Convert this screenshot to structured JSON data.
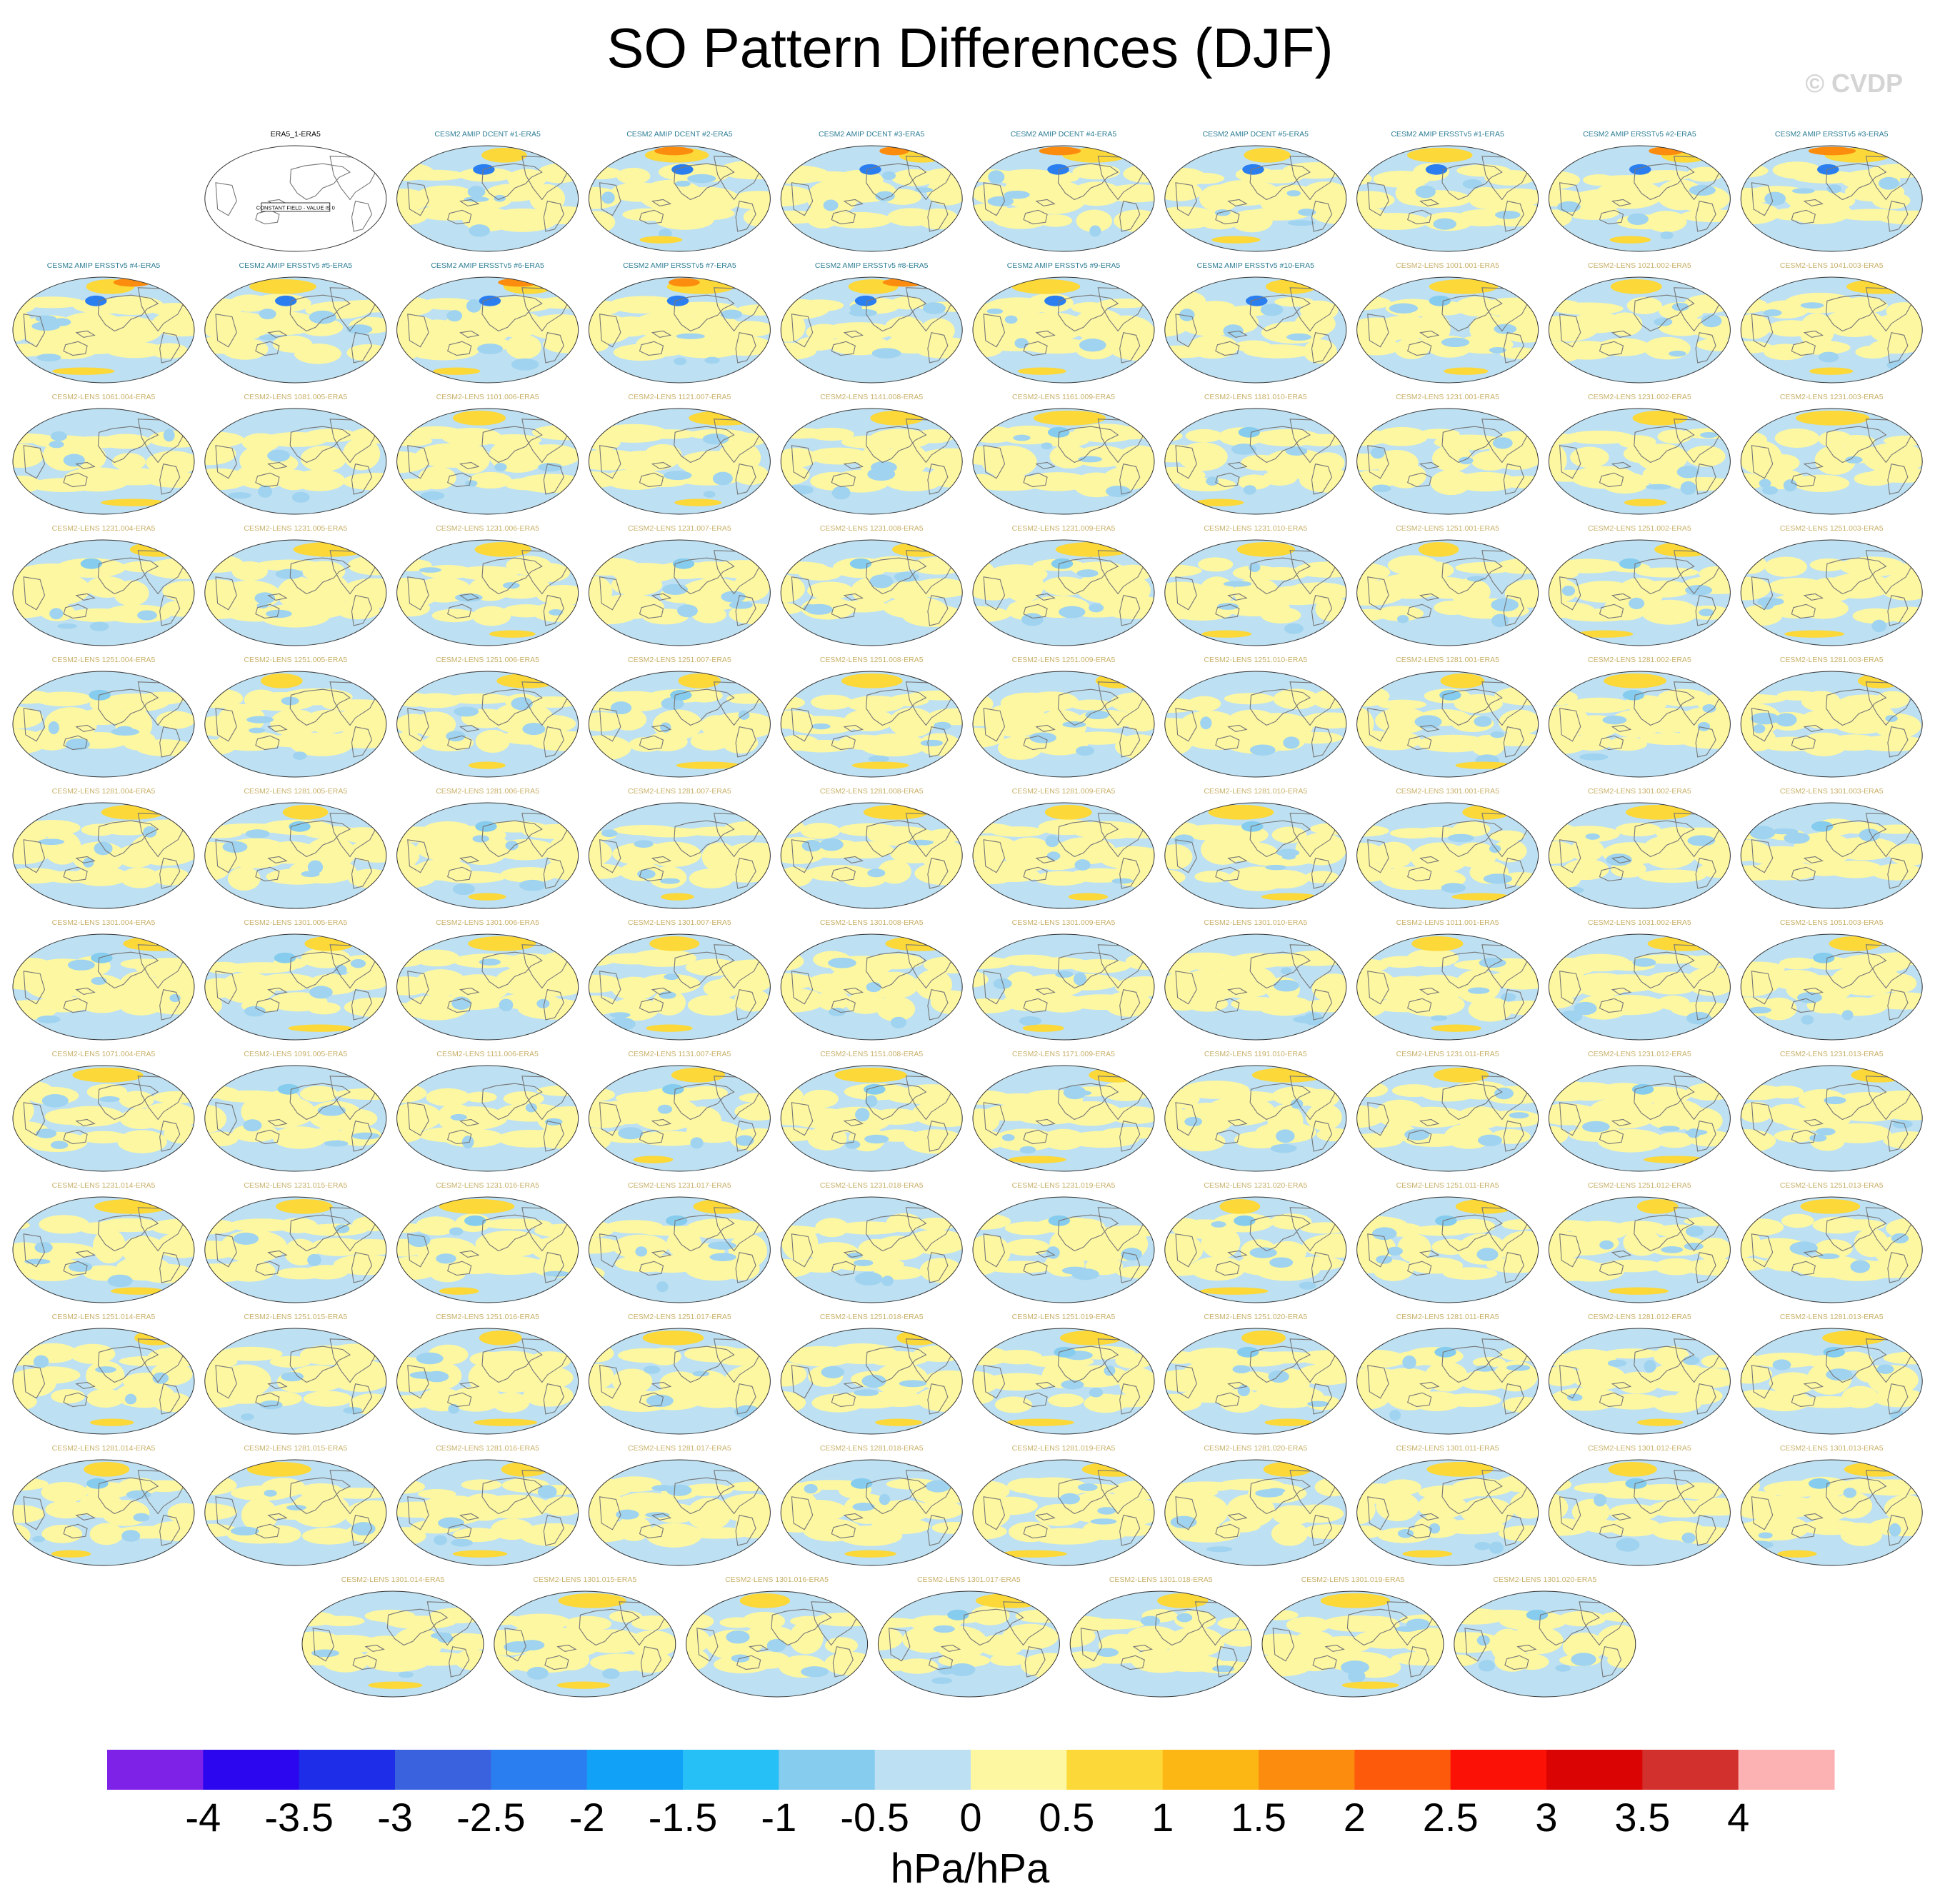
{
  "figure": {
    "title": "SO Pattern Differences (DJF)",
    "credit": "© CVDP"
  },
  "chart_data": {
    "type": "heatmap",
    "title": "SO Pattern Differences (DJF)",
    "projection": "global map",
    "panel_layout": {
      "rows": [
        9,
        10,
        10,
        10,
        10,
        10,
        10,
        10,
        10,
        10,
        10,
        7
      ]
    },
    "panels": [
      {
        "label": "ERA5_1-ERA5",
        "kind": "constant",
        "note": "CONSTANT FIELD - VALUE IS 0"
      },
      {
        "label": "CESM2 AMIP DCENT #1-ERA5",
        "kind": "amip"
      },
      {
        "label": "CESM2 AMIP DCENT #2-ERA5",
        "kind": "amip"
      },
      {
        "label": "CESM2 AMIP DCENT #3-ERA5",
        "kind": "amip"
      },
      {
        "label": "CESM2 AMIP DCENT #4-ERA5",
        "kind": "amip"
      },
      {
        "label": "CESM2 AMIP DCENT #5-ERA5",
        "kind": "amip"
      },
      {
        "label": "CESM2 AMIP ERSSTv5 #1-ERA5",
        "kind": "amip"
      },
      {
        "label": "CESM2 AMIP ERSSTv5 #2-ERA5",
        "kind": "amip"
      },
      {
        "label": "CESM2 AMIP ERSSTv5 #3-ERA5",
        "kind": "amip"
      },
      {
        "label": "CESM2 AMIP ERSSTv5 #4-ERA5",
        "kind": "amip"
      },
      {
        "label": "CESM2 AMIP ERSSTv5 #5-ERA5",
        "kind": "amip"
      },
      {
        "label": "CESM2 AMIP ERSSTv5 #6-ERA5",
        "kind": "amip"
      },
      {
        "label": "CESM2 AMIP ERSSTv5 #7-ERA5",
        "kind": "amip"
      },
      {
        "label": "CESM2 AMIP ERSSTv5 #8-ERA5",
        "kind": "amip"
      },
      {
        "label": "CESM2 AMIP ERSSTv5 #9-ERA5",
        "kind": "amip"
      },
      {
        "label": "CESM2 AMIP ERSSTv5 #10-ERA5",
        "kind": "amip"
      },
      {
        "label": "CESM2-LENS 1001.001-ERA5",
        "kind": "lens"
      },
      {
        "label": "CESM2-LENS 1021.002-ERA5",
        "kind": "lens"
      },
      {
        "label": "CESM2-LENS 1041.003-ERA5",
        "kind": "lens"
      },
      {
        "label": "CESM2-LENS 1061.004-ERA5",
        "kind": "lens"
      },
      {
        "label": "CESM2-LENS 1081.005-ERA5",
        "kind": "lens"
      },
      {
        "label": "CESM2-LENS 1101.006-ERA5",
        "kind": "lens"
      },
      {
        "label": "CESM2-LENS 1121.007-ERA5",
        "kind": "lens"
      },
      {
        "label": "CESM2-LENS 1141.008-ERA5",
        "kind": "lens"
      },
      {
        "label": "CESM2-LENS 1161.009-ERA5",
        "kind": "lens"
      },
      {
        "label": "CESM2-LENS 1181.010-ERA5",
        "kind": "lens"
      },
      {
        "label": "CESM2-LENS 1231.001-ERA5",
        "kind": "lens"
      },
      {
        "label": "CESM2-LENS 1231.002-ERA5",
        "kind": "lens"
      },
      {
        "label": "CESM2-LENS 1231.003-ERA5",
        "kind": "lens"
      },
      {
        "label": "CESM2-LENS 1231.004-ERA5",
        "kind": "lens"
      },
      {
        "label": "CESM2-LENS 1231.005-ERA5",
        "kind": "lens"
      },
      {
        "label": "CESM2-LENS 1231.006-ERA5",
        "kind": "lens"
      },
      {
        "label": "CESM2-LENS 1231.007-ERA5",
        "kind": "lens"
      },
      {
        "label": "CESM2-LENS 1231.008-ERA5",
        "kind": "lens"
      },
      {
        "label": "CESM2-LENS 1231.009-ERA5",
        "kind": "lens"
      },
      {
        "label": "CESM2-LENS 1231.010-ERA5",
        "kind": "lens"
      },
      {
        "label": "CESM2-LENS 1251.001-ERA5",
        "kind": "lens"
      },
      {
        "label": "CESM2-LENS 1251.002-ERA5",
        "kind": "lens"
      },
      {
        "label": "CESM2-LENS 1251.003-ERA5",
        "kind": "lens"
      },
      {
        "label": "CESM2-LENS 1251.004-ERA5",
        "kind": "lens"
      },
      {
        "label": "CESM2-LENS 1251.005-ERA5",
        "kind": "lens"
      },
      {
        "label": "CESM2-LENS 1251.006-ERA5",
        "kind": "lens"
      },
      {
        "label": "CESM2-LENS 1251.007-ERA5",
        "kind": "lens"
      },
      {
        "label": "CESM2-LENS 1251.008-ERA5",
        "kind": "lens"
      },
      {
        "label": "CESM2-LENS 1251.009-ERA5",
        "kind": "lens"
      },
      {
        "label": "CESM2-LENS 1251.010-ERA5",
        "kind": "lens"
      },
      {
        "label": "CESM2-LENS 1281.001-ERA5",
        "kind": "lens"
      },
      {
        "label": "CESM2-LENS 1281.002-ERA5",
        "kind": "lens"
      },
      {
        "label": "CESM2-LENS 1281.003-ERA5",
        "kind": "lens"
      },
      {
        "label": "CESM2-LENS 1281.004-ERA5",
        "kind": "lens"
      },
      {
        "label": "CESM2-LENS 1281.005-ERA5",
        "kind": "lens"
      },
      {
        "label": "CESM2-LENS 1281.006-ERA5",
        "kind": "lens"
      },
      {
        "label": "CESM2-LENS 1281.007-ERA5",
        "kind": "lens"
      },
      {
        "label": "CESM2-LENS 1281.008-ERA5",
        "kind": "lens"
      },
      {
        "label": "CESM2-LENS 1281.009-ERA5",
        "kind": "lens"
      },
      {
        "label": "CESM2-LENS 1281.010-ERA5",
        "kind": "lens"
      },
      {
        "label": "CESM2-LENS 1301.001-ERA5",
        "kind": "lens"
      },
      {
        "label": "CESM2-LENS 1301.002-ERA5",
        "kind": "lens"
      },
      {
        "label": "CESM2-LENS 1301.003-ERA5",
        "kind": "lens"
      },
      {
        "label": "CESM2-LENS 1301.004-ERA5",
        "kind": "lens"
      },
      {
        "label": "CESM2-LENS 1301.005-ERA5",
        "kind": "lens"
      },
      {
        "label": "CESM2-LENS 1301.006-ERA5",
        "kind": "lens"
      },
      {
        "label": "CESM2-LENS 1301.007-ERA5",
        "kind": "lens"
      },
      {
        "label": "CESM2-LENS 1301.008-ERA5",
        "kind": "lens"
      },
      {
        "label": "CESM2-LENS 1301.009-ERA5",
        "kind": "lens"
      },
      {
        "label": "CESM2-LENS 1301.010-ERA5",
        "kind": "lens"
      },
      {
        "label": "CESM2-LENS 1011.001-ERA5",
        "kind": "lens"
      },
      {
        "label": "CESM2-LENS 1031.002-ERA5",
        "kind": "lens"
      },
      {
        "label": "CESM2-LENS 1051.003-ERA5",
        "kind": "lens"
      },
      {
        "label": "CESM2-LENS 1071.004-ERA5",
        "kind": "lens"
      },
      {
        "label": "CESM2-LENS 1091.005-ERA5",
        "kind": "lens"
      },
      {
        "label": "CESM2-LENS 1111.006-ERA5",
        "kind": "lens"
      },
      {
        "label": "CESM2-LENS 1131.007-ERA5",
        "kind": "lens"
      },
      {
        "label": "CESM2-LENS 1151.008-ERA5",
        "kind": "lens"
      },
      {
        "label": "CESM2-LENS 1171.009-ERA5",
        "kind": "lens"
      },
      {
        "label": "CESM2-LENS 1191.010-ERA5",
        "kind": "lens"
      },
      {
        "label": "CESM2-LENS 1231.011-ERA5",
        "kind": "lens"
      },
      {
        "label": "CESM2-LENS 1231.012-ERA5",
        "kind": "lens"
      },
      {
        "label": "CESM2-LENS 1231.013-ERA5",
        "kind": "lens"
      },
      {
        "label": "CESM2-LENS 1231.014-ERA5",
        "kind": "lens"
      },
      {
        "label": "CESM2-LENS 1231.015-ERA5",
        "kind": "lens"
      },
      {
        "label": "CESM2-LENS 1231.016-ERA5",
        "kind": "lens"
      },
      {
        "label": "CESM2-LENS 1231.017-ERA5",
        "kind": "lens"
      },
      {
        "label": "CESM2-LENS 1231.018-ERA5",
        "kind": "lens"
      },
      {
        "label": "CESM2-LENS 1231.019-ERA5",
        "kind": "lens"
      },
      {
        "label": "CESM2-LENS 1231.020-ERA5",
        "kind": "lens"
      },
      {
        "label": "CESM2-LENS 1251.011-ERA5",
        "kind": "lens"
      },
      {
        "label": "CESM2-LENS 1251.012-ERA5",
        "kind": "lens"
      },
      {
        "label": "CESM2-LENS 1251.013-ERA5",
        "kind": "lens"
      },
      {
        "label": "CESM2-LENS 1251.014-ERA5",
        "kind": "lens"
      },
      {
        "label": "CESM2-LENS 1251.015-ERA5",
        "kind": "lens"
      },
      {
        "label": "CESM2-LENS 1251.016-ERA5",
        "kind": "lens"
      },
      {
        "label": "CESM2-LENS 1251.017-ERA5",
        "kind": "lens"
      },
      {
        "label": "CESM2-LENS 1251.018-ERA5",
        "kind": "lens"
      },
      {
        "label": "CESM2-LENS 1251.019-ERA5",
        "kind": "lens"
      },
      {
        "label": "CESM2-LENS 1251.020-ERA5",
        "kind": "lens"
      },
      {
        "label": "CESM2-LENS 1281.011-ERA5",
        "kind": "lens"
      },
      {
        "label": "CESM2-LENS 1281.012-ERA5",
        "kind": "lens"
      },
      {
        "label": "CESM2-LENS 1281.013-ERA5",
        "kind": "lens"
      },
      {
        "label": "CESM2-LENS 1281.014-ERA5",
        "kind": "lens"
      },
      {
        "label": "CESM2-LENS 1281.015-ERA5",
        "kind": "lens"
      },
      {
        "label": "CESM2-LENS 1281.016-ERA5",
        "kind": "lens"
      },
      {
        "label": "CESM2-LENS 1281.017-ERA5",
        "kind": "lens"
      },
      {
        "label": "CESM2-LENS 1281.018-ERA5",
        "kind": "lens"
      },
      {
        "label": "CESM2-LENS 1281.019-ERA5",
        "kind": "lens"
      },
      {
        "label": "CESM2-LENS 1281.020-ERA5",
        "kind": "lens"
      },
      {
        "label": "CESM2-LENS 1301.011-ERA5",
        "kind": "lens"
      },
      {
        "label": "CESM2-LENS 1301.012-ERA5",
        "kind": "lens"
      },
      {
        "label": "CESM2-LENS 1301.013-ERA5",
        "kind": "lens"
      },
      {
        "label": "CESM2-LENS 1301.014-ERA5",
        "kind": "lens"
      },
      {
        "label": "CESM2-LENS 1301.015-ERA5",
        "kind": "lens"
      },
      {
        "label": "CESM2-LENS 1301.016-ERA5",
        "kind": "lens"
      },
      {
        "label": "CESM2-LENS 1301.017-ERA5",
        "kind": "lens"
      },
      {
        "label": "CESM2-LENS 1301.018-ERA5",
        "kind": "lens"
      },
      {
        "label": "CESM2-LENS 1301.019-ERA5",
        "kind": "lens"
      },
      {
        "label": "CESM2-LENS 1301.020-ERA5",
        "kind": "lens"
      }
    ],
    "colorbar": {
      "units": "hPa/hPa",
      "tick_labels": [
        "-4",
        "-3.5",
        "-3",
        "-2.5",
        "-2",
        "-1.5",
        "-1",
        "-0.5",
        "0",
        "0.5",
        "1",
        "1.5",
        "2",
        "2.5",
        "3",
        "3.5",
        "4"
      ],
      "colors": [
        "#7e22e8",
        "#2b06ee",
        "#1e2ee8",
        "#3a62df",
        "#2b7ef0",
        "#11a1f6",
        "#26c0f7",
        "#86ccee",
        "#bde0f2",
        "#fdf7a2",
        "#fcd838",
        "#fcb715",
        "#fc8c0e",
        "#fd5b0b",
        "#fb1106",
        "#db0404",
        "#d2302c",
        "#fcb2b2"
      ]
    },
    "label_colors": {
      "amip": "#2f7f96",
      "lens": "#c8b068",
      "constant": "#000000"
    },
    "map_colors": {
      "ocean_base": "#bde0f2",
      "positive": "#fdf7a2",
      "land_outline": "#777777"
    }
  }
}
